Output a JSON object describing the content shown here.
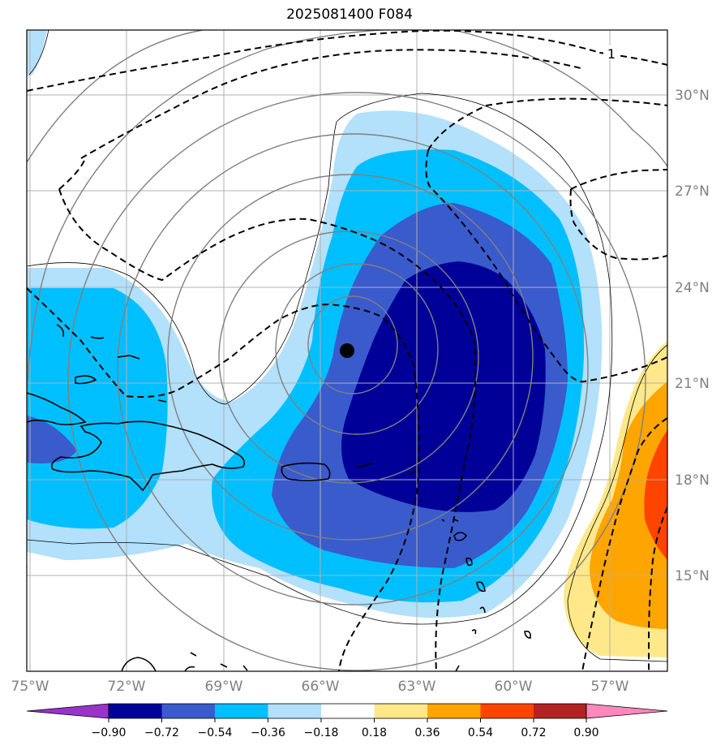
{
  "title": "2025081400 F084",
  "map": {
    "lon_ticks": [
      "75°W",
      "72°W",
      "69°W",
      "66°W",
      "63°W",
      "60°W",
      "57°W"
    ],
    "lat_ticks": [
      "30°N",
      "27°N",
      "24°N",
      "21°N",
      "18°N",
      "15°N"
    ],
    "contour_label": "1"
  },
  "colorbar": {
    "ticks": [
      "−0.90",
      "−0.72",
      "−0.54",
      "−0.36",
      "−0.18",
      "0.18",
      "0.36",
      "0.54",
      "0.72",
      "0.90"
    ],
    "colors": {
      "extend_low": "#9933cc",
      "levels": [
        "#000099",
        "#3a5bcc",
        "#00bfff",
        "#b3e0fa",
        "#ffffff",
        "#ffe88a",
        "#ffa500",
        "#ff4400",
        "#b22222",
        "#ff88bb"
      ],
      "extend_high": "#ff88bb"
    }
  },
  "colors": {
    "grid": "#b0b0b0",
    "coast": "#000000",
    "contour_solid": "#808080",
    "contour_dashed": "#000000",
    "center_marker": "#000000"
  },
  "icons": {
    "storm_center": "filled-circle-marker"
  }
}
